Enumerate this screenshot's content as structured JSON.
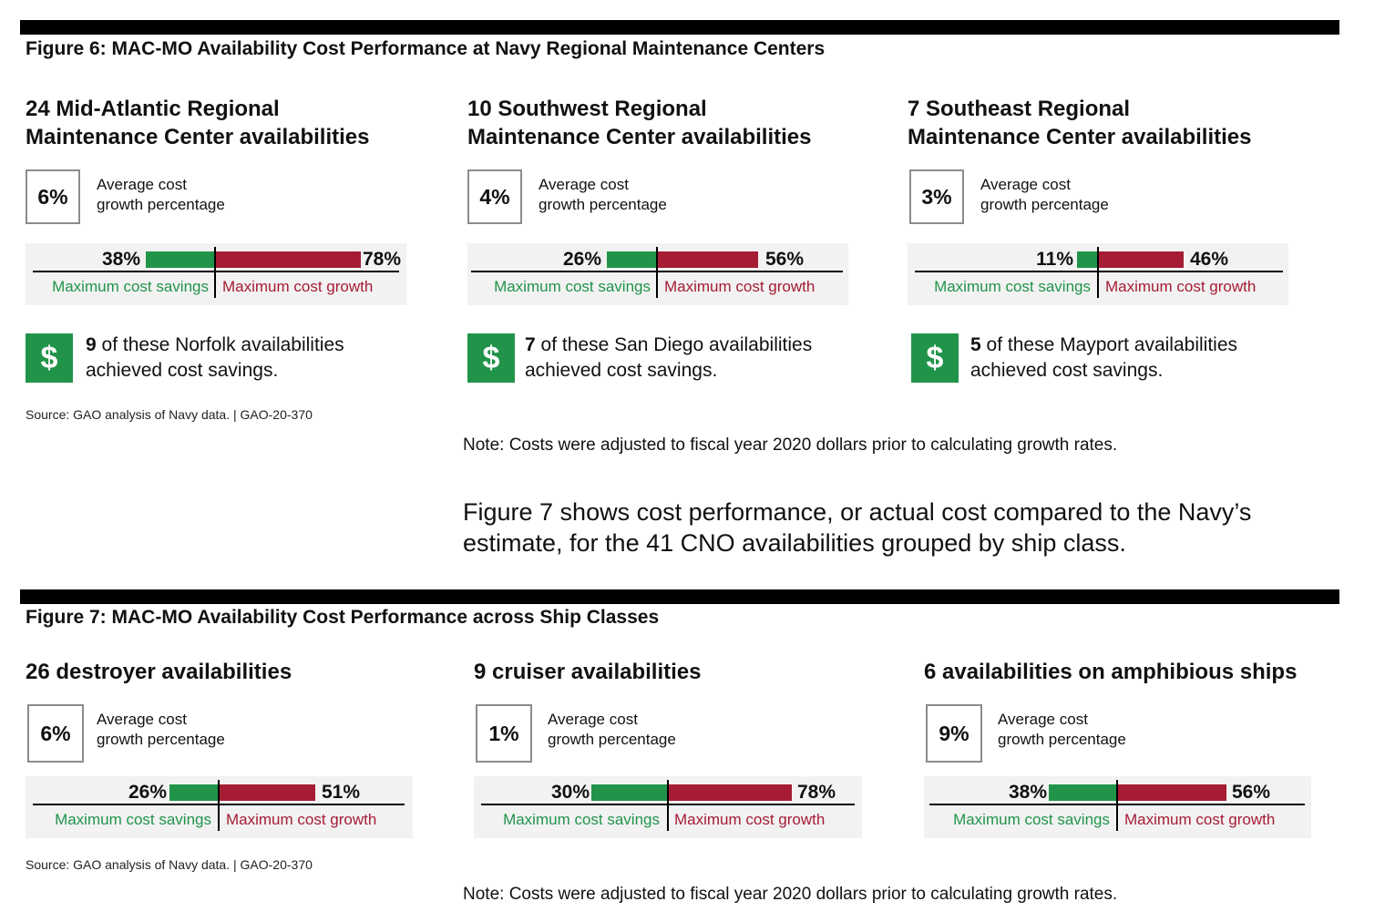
{
  "figure6": {
    "title": "Figure 6: MAC-MO Availability Cost Performance at Navy Regional Maintenance Centers",
    "panels": [
      {
        "title_line1": "24 Mid-Atlantic Regional",
        "title_line2": "Maintenance Center availabilities",
        "avg_pct": "6%",
        "avg_label_line1": "Average cost",
        "avg_label_line2": "growth percentage",
        "max_savings_pct": "38%",
        "max_growth_pct": "78%",
        "savings_label": "Maximum cost savings",
        "growth_label": "Maximum cost growth",
        "dollar": "$",
        "savings_count": "9",
        "savings_text_line1": " of these Norfolk availabilities",
        "savings_text_line2": "achieved cost savings."
      },
      {
        "title_line1": "10 Southwest Regional",
        "title_line2": "Maintenance Center availabilities",
        "avg_pct": "4%",
        "avg_label_line1": "Average cost",
        "avg_label_line2": "growth percentage",
        "max_savings_pct": "26%",
        "max_growth_pct": "56%",
        "savings_label": "Maximum cost savings",
        "growth_label": "Maximum cost growth",
        "dollar": "$",
        "savings_count": "7",
        "savings_text_line1": " of these San Diego availabilities",
        "savings_text_line2": "achieved cost savings."
      },
      {
        "title_line1": "7 Southeast Regional",
        "title_line2": "Maintenance Center availabilities",
        "avg_pct": "3%",
        "avg_label_line1": "Average cost",
        "avg_label_line2": "growth percentage",
        "max_savings_pct": "11%",
        "max_growth_pct": "46%",
        "savings_label": "Maximum cost savings",
        "growth_label": "Maximum cost growth",
        "dollar": "$",
        "savings_count": "5",
        "savings_text_line1": " of these Mayport availabilities",
        "savings_text_line2": "achieved cost savings."
      }
    ],
    "source": "Source: GAO analysis of Navy data.  |  GAO-20-370",
    "note": "Note: Costs were adjusted to fiscal year 2020 dollars prior to calculating growth rates."
  },
  "body_text": {
    "line1": "Figure 7 shows cost performance, or actual cost compared to the Navy’s",
    "line2": "estimate, for the 41 CNO availabilities grouped by ship class."
  },
  "figure7": {
    "title": "Figure 7: MAC-MO Availability Cost Performance across Ship Classes",
    "panels": [
      {
        "title": "26 destroyer availabilities",
        "avg_pct": "6%",
        "avg_label_line1": "Average cost",
        "avg_label_line2": "growth percentage",
        "max_savings_pct": "26%",
        "max_growth_pct": "51%",
        "savings_label": "Maximum cost savings",
        "growth_label": "Maximum cost growth"
      },
      {
        "title": "9 cruiser availabilities",
        "avg_pct": "1%",
        "avg_label_line1": "Average cost",
        "avg_label_line2": "growth percentage",
        "max_savings_pct": "30%",
        "max_growth_pct": "78%",
        "savings_label": "Maximum cost savings",
        "growth_label": "Maximum cost growth"
      },
      {
        "title": "6 availabilities on amphibious ships",
        "avg_pct": "9%",
        "avg_label_line1": "Average cost",
        "avg_label_line2": "growth percentage",
        "max_savings_pct": "38%",
        "max_growth_pct": "56%",
        "savings_label": "Maximum cost savings",
        "growth_label": "Maximum cost growth"
      }
    ],
    "source": "Source: GAO analysis of Navy data.  |  GAO-20-370",
    "note": "Note: Costs were adjusted to fiscal year 2020 dollars prior to calculating growth rates."
  },
  "colors": {
    "savings": "#21944a",
    "growth": "#a51c34"
  }
}
